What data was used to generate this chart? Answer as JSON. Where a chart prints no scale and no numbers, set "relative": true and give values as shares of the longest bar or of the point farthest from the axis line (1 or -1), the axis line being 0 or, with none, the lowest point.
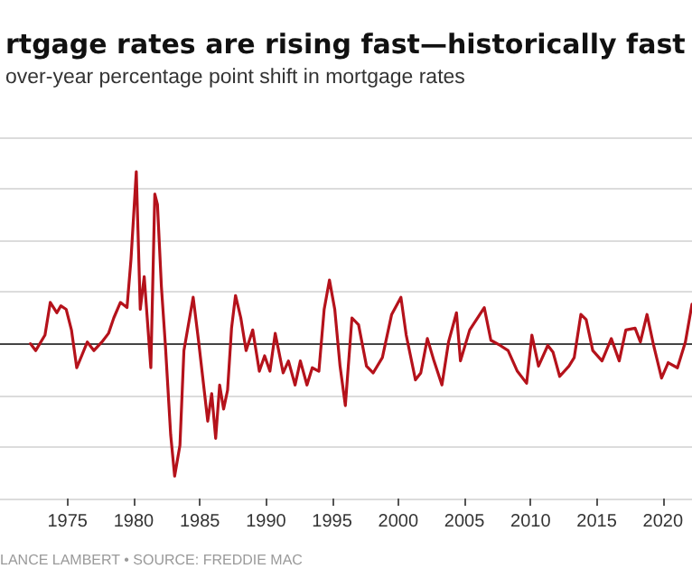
{
  "chart_data": {
    "type": "line",
    "title": "rtgage rates are rising fast—historically fast",
    "subtitle": "over-year percentage point shift in mortgage rates",
    "annotations": [
      "LANCE LAMBERT • SOURCE: FREDDIE MAC"
    ],
    "relative": true,
    "grid": "y",
    "marker": "none",
    "line_style": "solid",
    "xlim": [
      1969.9,
      2022.2
    ],
    "xticks": [
      1975,
      1980,
      1985,
      1990,
      1995,
      2000,
      2005,
      2010,
      2015,
      2020
    ],
    "series": [
      {
        "color": "#b5121b",
        "x": [
          1972.2,
          1972.6,
          1973.3,
          1973.7,
          1974.2,
          1974.5,
          1974.9,
          1975.3,
          1975.7,
          1976.5,
          1977,
          1977.6,
          1978.1,
          1978.5,
          1979,
          1979.5,
          1979.8,
          1980.2,
          1980.5,
          1980.8,
          1981.3,
          1981.6,
          1981.8,
          1982.1,
          1982.4,
          1982.8,
          1983.1,
          1983.5,
          1983.8,
          1984.5,
          1984.9,
          1985.6,
          1985.9,
          1986.2,
          1986.5,
          1986.8,
          1987.1,
          1987.4,
          1987.7,
          1988.1,
          1988.5,
          1989,
          1989.5,
          1989.9,
          1990.3,
          1990.7,
          1991.3,
          1991.7,
          1992.2,
          1992.6,
          1993.1,
          1993.5,
          1994,
          1994.4,
          1994.8,
          1995.2,
          1995.6,
          1996,
          1996.5,
          1997,
          1997.6,
          1998.1,
          1998.8,
          1999.5,
          2000.2,
          2000.6,
          2001.3,
          2001.7,
          2002.2,
          2002.7,
          2003.3,
          2003.8,
          2004.4,
          2004.7,
          2005.4,
          2006.5,
          2007,
          2007.7,
          2008.3,
          2009,
          2009.7,
          2010.1,
          2010.6,
          2011.3,
          2011.7,
          2012.2,
          2012.9,
          2013.3,
          2013.8,
          2014.2,
          2014.7,
          2015.4,
          2016.1,
          2016.7,
          2017.2,
          2017.9,
          2018.3,
          2018.8,
          2019.3,
          2019.9,
          2020.4,
          2021.1,
          2021.7,
          2022.2
        ],
        "values": [
          0,
          -0.04,
          0.05,
          0.24,
          0.18,
          0.22,
          0.2,
          0.08,
          -0.14,
          0.01,
          -0.04,
          0.01,
          0.06,
          0.15,
          0.24,
          0.21,
          0.49,
          1,
          0.2,
          0.39,
          -0.14,
          0.87,
          0.81,
          0.33,
          -0.01,
          -0.53,
          -0.77,
          -0.59,
          -0.04,
          0.27,
          0.02,
          -0.45,
          -0.29,
          -0.55,
          -0.24,
          -0.38,
          -0.27,
          0.09,
          0.28,
          0.15,
          -0.04,
          0.08,
          -0.16,
          -0.07,
          -0.16,
          0.06,
          -0.17,
          -0.1,
          -0.24,
          -0.1,
          -0.24,
          -0.14,
          -0.16,
          0.2,
          0.37,
          0.2,
          -0.13,
          -0.36,
          0.15,
          0.11,
          -0.13,
          -0.17,
          -0.08,
          0.17,
          0.27,
          0.05,
          -0.21,
          -0.17,
          0.03,
          -0.1,
          -0.24,
          0.01,
          0.18,
          -0.1,
          0.08,
          0.21,
          0.02,
          -0.01,
          -0.04,
          -0.16,
          -0.23,
          0.05,
          -0.13,
          -0.01,
          -0.05,
          -0.19,
          -0.13,
          -0.08,
          0.17,
          0.14,
          -0.04,
          -0.1,
          0.03,
          -0.1,
          0.08,
          0.09,
          0.01,
          0.17,
          -0.01,
          -0.2,
          -0.11,
          -0.14,
          0.01,
          0.23
        ]
      }
    ]
  }
}
